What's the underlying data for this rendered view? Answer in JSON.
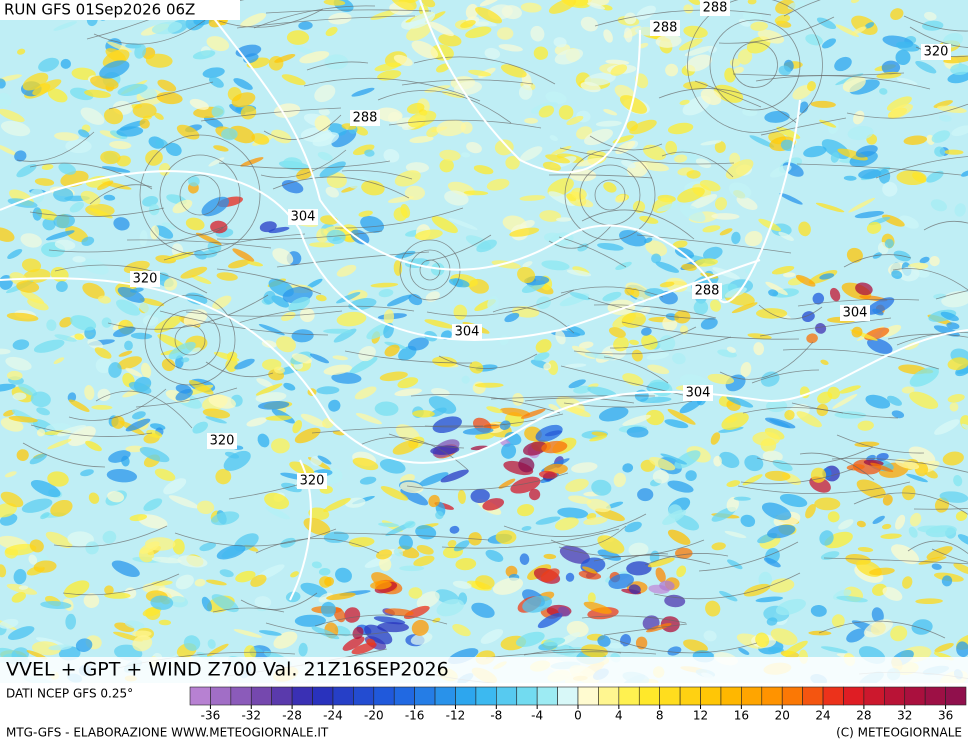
{
  "header": {
    "run": "RUN GFS 01Sep2026 06Z"
  },
  "map": {
    "contour_labels": [
      288,
      288,
      288,
      320,
      304,
      320,
      304,
      288,
      304,
      304,
      320,
      320
    ]
  },
  "title": "VVEL + GPT + WIND Z700 Val. 21Z16SEP2026",
  "legend": {
    "source": "DATI NCEP GFS 0.25°",
    "ticks": [
      -36,
      -32,
      -28,
      -24,
      -20,
      -16,
      -12,
      -8,
      -4,
      0,
      4,
      8,
      12,
      16,
      20,
      24,
      28,
      32,
      36
    ]
  },
  "footer": {
    "left": "MTG-GFS - ELABORAZIONE WWW.METEOGIORNALE.IT",
    "right": "(C) METEOGIORNALE"
  }
}
